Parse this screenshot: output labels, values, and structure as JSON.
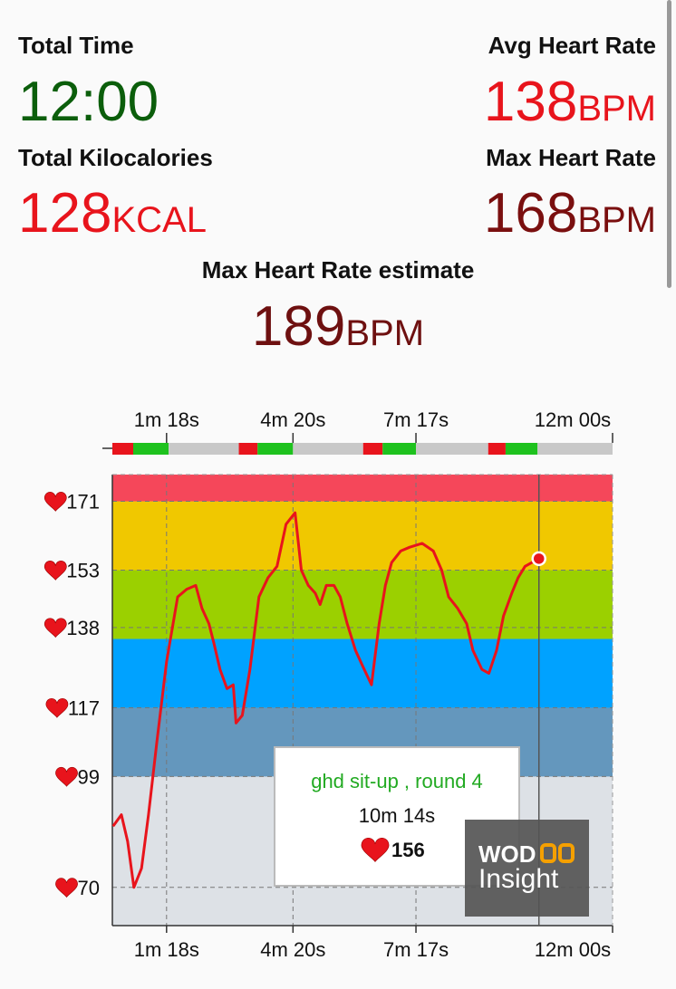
{
  "stats": {
    "total_time": {
      "label": "Total Time",
      "value": "12:00",
      "color": "#0b5e0b"
    },
    "avg_hr": {
      "label": "Avg Heart Rate",
      "value": 138,
      "unit": "BPM",
      "color": "#e8141c"
    },
    "kcal": {
      "label": "Total Kilocalories",
      "value": 128,
      "unit": "KCAL",
      "color": "#e8141c"
    },
    "max_hr": {
      "label": "Max Heart Rate",
      "value": 168,
      "unit": "BPM",
      "color": "#7a0f0f"
    },
    "max_hr_estimate": {
      "label": "Max Heart Rate estimate",
      "value": 189,
      "unit": "BPM",
      "color": "#6e1010"
    }
  },
  "chart_data": {
    "type": "line",
    "xlim": [
      0,
      720
    ],
    "xticks": [
      {
        "value": 78,
        "label": "1m 18s"
      },
      {
        "value": 260,
        "label": "4m 20s"
      },
      {
        "value": 437,
        "label": "7m 17s"
      },
      {
        "value": 720,
        "label": "12m 00s"
      }
    ],
    "ylim": [
      60,
      178
    ],
    "yticks": [
      70,
      99,
      117,
      138,
      153,
      171
    ],
    "grid": true,
    "zones": [
      {
        "from": 60,
        "to": 99,
        "color": "#dde1e6"
      },
      {
        "from": 99,
        "to": 117,
        "color": "#6497bd"
      },
      {
        "from": 117,
        "to": 135,
        "color": "#00a2ff"
      },
      {
        "from": 135,
        "to": 153,
        "color": "#9bd000"
      },
      {
        "from": 153,
        "to": 171,
        "color": "#f0c800"
      },
      {
        "from": 171,
        "to": 178,
        "color": "#f5475a"
      }
    ],
    "timeline": [
      {
        "start": 0,
        "end": 30,
        "color": "#e8141c"
      },
      {
        "start": 30,
        "end": 81,
        "color": "#1ec21e"
      },
      {
        "start": 81,
        "end": 182,
        "color": "#c8c8c8"
      },
      {
        "start": 182,
        "end": 209,
        "color": "#e8141c"
      },
      {
        "start": 209,
        "end": 260,
        "color": "#1ec21e"
      },
      {
        "start": 260,
        "end": 361,
        "color": "#c8c8c8"
      },
      {
        "start": 361,
        "end": 389,
        "color": "#e8141c"
      },
      {
        "start": 389,
        "end": 437,
        "color": "#1ec21e"
      },
      {
        "start": 437,
        "end": 541,
        "color": "#c8c8c8"
      },
      {
        "start": 541,
        "end": 566,
        "color": "#e8141c"
      },
      {
        "start": 566,
        "end": 612,
        "color": "#1ec21e"
      },
      {
        "start": 612,
        "end": 720,
        "color": "#c8c8c8"
      }
    ],
    "series": [
      {
        "color": "#e8141c",
        "x": [
          1,
          13,
          22,
          31,
          42,
          52,
          64,
          78,
          94,
          107,
          120,
          129,
          139,
          146,
          155,
          165,
          174,
          178,
          187,
          198,
          211,
          224,
          237,
          250,
          263,
          272,
          282,
          292,
          299,
          308,
          319,
          328,
          338,
          350,
          360,
          373,
          384,
          393,
          402,
          415,
          428,
          446,
          462,
          474,
          484,
          497,
          510,
          519,
          532,
          542,
          553,
          563,
          575,
          584,
          594,
          614
        ],
        "values": [
          86,
          89,
          82,
          70,
          75,
          89,
          108,
          129,
          146,
          148,
          149,
          143,
          139,
          134,
          127,
          122,
          123,
          113,
          115,
          127,
          146,
          151,
          154,
          165,
          168,
          153,
          149,
          147,
          144,
          149,
          149,
          146,
          139,
          132,
          128,
          123,
          139,
          149,
          155,
          158,
          159,
          160,
          158,
          153,
          146,
          143,
          139,
          132,
          127,
          126,
          132,
          141,
          147,
          151,
          154,
          156
        ]
      }
    ],
    "cursor": {
      "x": 614
    },
    "tooltip": {
      "title": "ghd sit-up , round 4",
      "time": "10m 14s",
      "value": 156
    },
    "logo": {
      "top": "WOD",
      "bottom": "Insight"
    }
  }
}
